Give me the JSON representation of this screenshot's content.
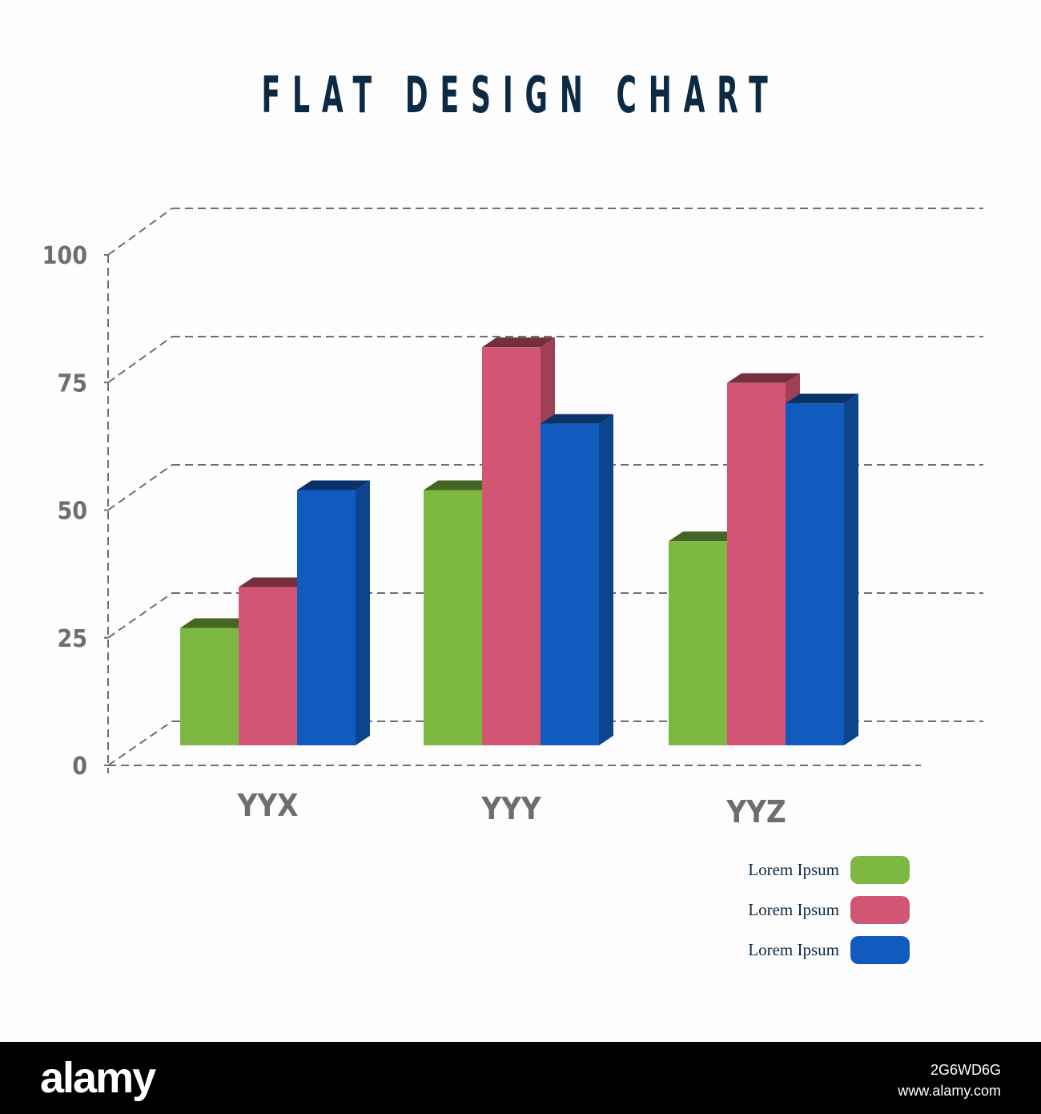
{
  "chart_data": {
    "type": "bar",
    "title": "FLAT DESIGN CHART",
    "categories": [
      "YYX",
      "YYY",
      "YYZ"
    ],
    "series": [
      {
        "name": "Lorem Ipsum",
        "color": "#7db843",
        "values": [
          23,
          50,
          40
        ]
      },
      {
        "name": "Lorem Ipsum",
        "color": "#d25573",
        "values": [
          31,
          78,
          71
        ]
      },
      {
        "name": "Lorem Ipsum",
        "color": "#105bbd",
        "values": [
          50,
          63,
          67
        ]
      }
    ],
    "yticks": [
      "0",
      "25",
      "50",
      "75",
      "100"
    ],
    "ylim": [
      0,
      100
    ],
    "grid": true,
    "legend": "bottom-right"
  },
  "footer": {
    "logo": "alamy",
    "image_id": "2G6WD6G",
    "url": "www.alamy.com"
  }
}
